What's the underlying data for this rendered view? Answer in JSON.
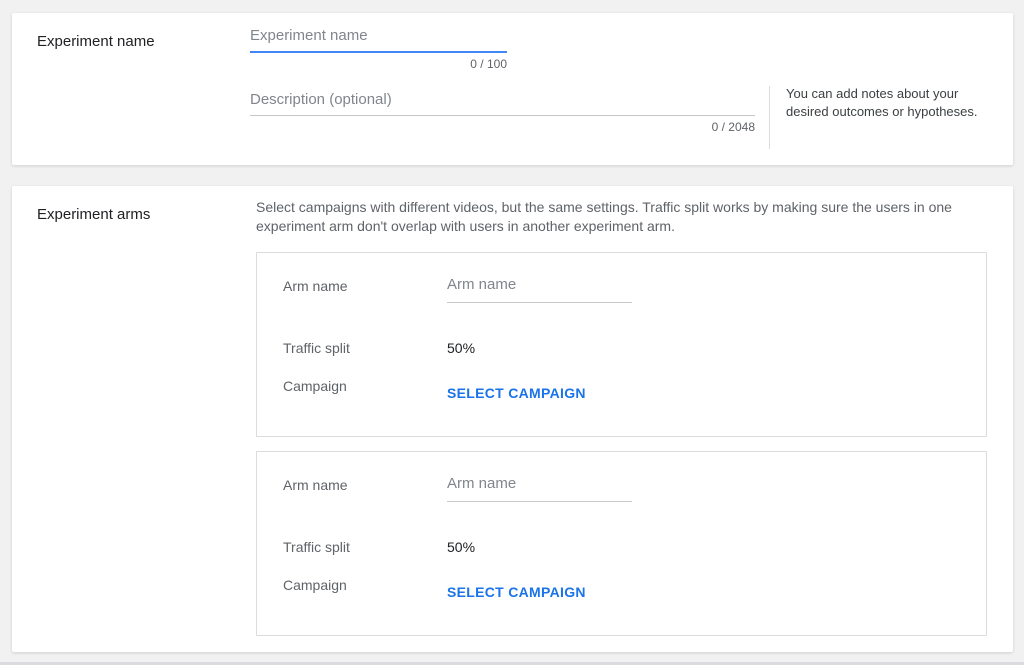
{
  "colors": {
    "page_background": "#f1f1f1",
    "focused_underline_blue": "#4285f4",
    "link_blue": "#1a73e8"
  },
  "experiment_name_section": {
    "label": "Experiment name",
    "name_field": {
      "placeholder": "Experiment name",
      "value": "",
      "counter": "0 / 100"
    },
    "description_field": {
      "placeholder": "Description (optional)",
      "value": "",
      "counter": "0 / 2048"
    },
    "helper_note": "You can add notes about your desired outcomes or hypotheses."
  },
  "experiment_arms_section": {
    "label": "Experiment arms",
    "description": "Select campaigns with different videos, but the same settings. Traffic split works by making sure the users in one experiment arm don't overlap with users in another experiment arm.",
    "arms": [
      {
        "name_label": "Arm name",
        "name_placeholder": "Arm name",
        "name_value": "",
        "traffic_label": "Traffic split",
        "traffic_value": "50%",
        "campaign_label": "Campaign",
        "campaign_button": "SELECT CAMPAIGN"
      },
      {
        "name_label": "Arm name",
        "name_placeholder": "Arm name",
        "name_value": "",
        "traffic_label": "Traffic split",
        "traffic_value": "50%",
        "campaign_label": "Campaign",
        "campaign_button": "SELECT CAMPAIGN"
      }
    ]
  }
}
